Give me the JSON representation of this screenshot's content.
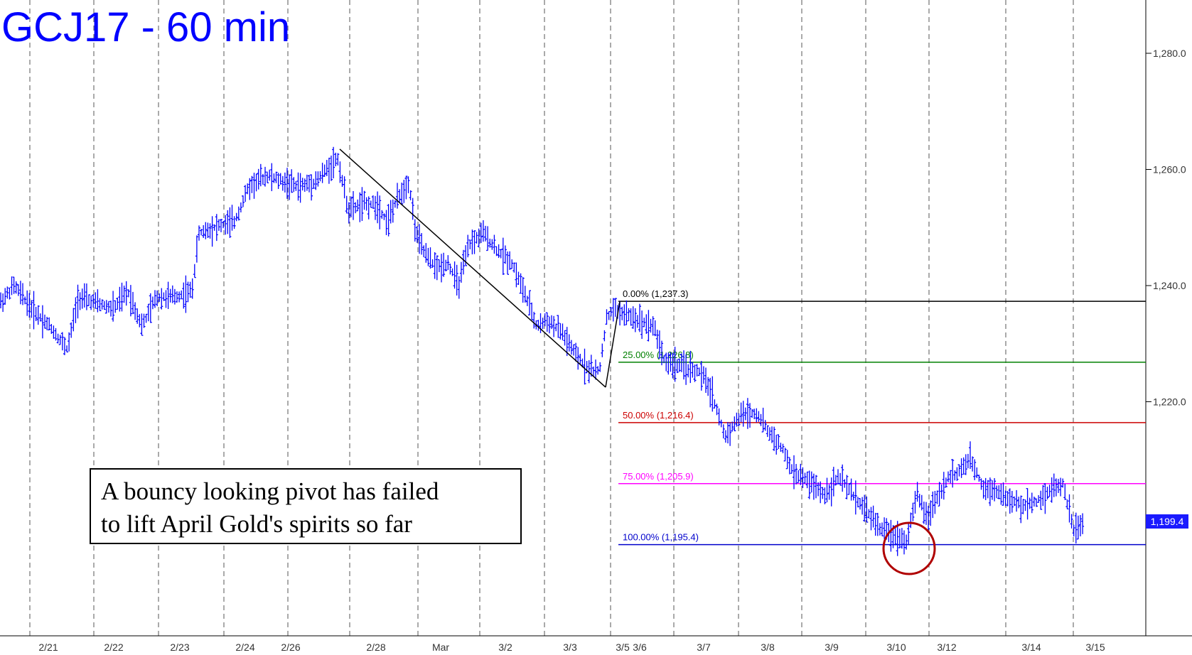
{
  "chart_data": {
    "type": "bar",
    "subtype": "ohlc",
    "title": "GCJ17 - 60 min",
    "ylim": [
      1180,
      1292
    ],
    "y_ticks": [
      "1,280.0",
      "1,260.0",
      "1,240.0",
      "1,220.0"
    ],
    "x_tick_labels": [
      "2/21",
      "2/22",
      "2/23",
      "2/24",
      "2/26",
      "2/28",
      "Mar",
      "3/2",
      "3/3",
      "3/5",
      "3/6",
      "3/7",
      "3/8",
      "3/9",
      "3/10",
      "3/12",
      "3/14",
      "3/15"
    ],
    "last_price": "1,199.4",
    "price_path": [
      [
        0,
        1237
      ],
      [
        20,
        1240
      ],
      [
        45,
        1236
      ],
      [
        70,
        1233
      ],
      [
        95,
        1229
      ],
      [
        110,
        1238
      ],
      [
        135,
        1237
      ],
      [
        160,
        1236
      ],
      [
        180,
        1239
      ],
      [
        200,
        1233
      ],
      [
        220,
        1238
      ],
      [
        245,
        1238
      ],
      [
        270,
        1239
      ],
      [
        280,
        1249
      ],
      [
        300,
        1250
      ],
      [
        330,
        1251
      ],
      [
        350,
        1257
      ],
      [
        375,
        1259
      ],
      [
        395,
        1258
      ],
      [
        420,
        1257
      ],
      [
        445,
        1258
      ],
      [
        475,
        1262
      ],
      [
        490,
        1253
      ],
      [
        510,
        1254
      ],
      [
        530,
        1254
      ],
      [
        545,
        1251
      ],
      [
        560,
        1255
      ],
      [
        575,
        1258
      ],
      [
        585,
        1249
      ],
      [
        600,
        1245
      ],
      [
        615,
        1243
      ],
      [
        630,
        1244
      ],
      [
        645,
        1240
      ],
      [
        660,
        1247
      ],
      [
        680,
        1249
      ],
      [
        700,
        1246
      ],
      [
        720,
        1244
      ],
      [
        740,
        1238
      ],
      [
        755,
        1233
      ],
      [
        770,
        1234
      ],
      [
        790,
        1232
      ],
      [
        810,
        1228
      ],
      [
        825,
        1226
      ],
      [
        843,
        1225
      ],
      [
        853,
        1234
      ],
      [
        862,
        1236
      ],
      [
        880,
        1235
      ],
      [
        900,
        1234
      ],
      [
        920,
        1233
      ],
      [
        935,
        1227
      ],
      [
        960,
        1226
      ],
      [
        985,
        1225
      ],
      [
        1000,
        1222
      ],
      [
        1020,
        1214
      ],
      [
        1045,
        1218
      ],
      [
        1065,
        1218
      ],
      [
        1080,
        1215
      ],
      [
        1100,
        1212
      ],
      [
        1115,
        1208
      ],
      [
        1140,
        1206
      ],
      [
        1160,
        1204
      ],
      [
        1180,
        1207
      ],
      [
        1200,
        1204
      ],
      [
        1220,
        1201
      ],
      [
        1240,
        1198
      ],
      [
        1260,
        1197
      ],
      [
        1275,
        1196
      ],
      [
        1290,
        1204
      ],
      [
        1305,
        1200
      ],
      [
        1320,
        1204
      ],
      [
        1335,
        1207
      ],
      [
        1350,
        1208
      ],
      [
        1365,
        1210
      ],
      [
        1385,
        1205
      ],
      [
        1400,
        1205
      ],
      [
        1420,
        1203
      ],
      [
        1440,
        1202
      ],
      [
        1460,
        1203
      ],
      [
        1480,
        1205
      ],
      [
        1495,
        1206
      ],
      [
        1510,
        1198
      ],
      [
        1525,
        1199
      ]
    ],
    "trendline": {
      "from": [
        478,
        1263.5
      ],
      "to": [
        852,
        1222.5
      ]
    },
    "fib_levels": [
      {
        "label": "0.00% (1,237.3)",
        "value": 1237.3,
        "color": "#000000"
      },
      {
        "label": "25.00% (1,226.8)",
        "value": 1226.8,
        "color": "#008000"
      },
      {
        "label": "50.00% (1,216.4)",
        "value": 1216.4,
        "color": "#cc0000"
      },
      {
        "label": "75.00% (1,205.9)",
        "value": 1205.9,
        "color": "#ff00ff"
      },
      {
        "label": "100.00% (1,195.4)",
        "value": 1195.4,
        "color": "#0000cc"
      }
    ],
    "colors": {
      "bars": "#0000ff",
      "title": "#0000ff",
      "circle": "#b00000",
      "last_price_tag": "#1a1aff"
    }
  },
  "annotation": {
    "line1": "A bouncy looking pivot has failed",
    "line2": "to lift April Gold's spirits so far"
  }
}
